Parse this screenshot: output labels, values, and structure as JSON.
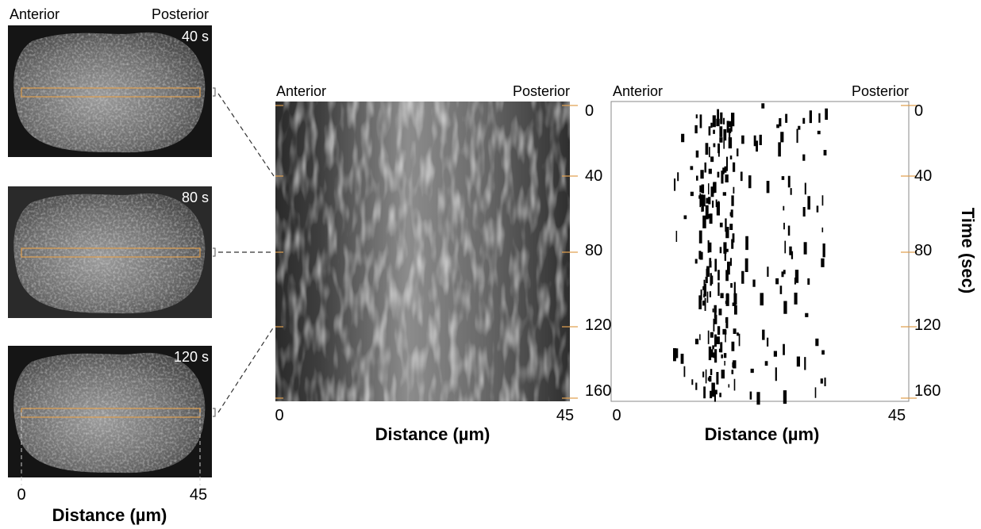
{
  "embryo_panel": {
    "anterior": "Anterior",
    "posterior": "Posterior",
    "frames": [
      "40 s",
      "80 s",
      "120 s"
    ],
    "x_ticks": [
      0,
      45
    ],
    "x_label": "Distance (µm)"
  },
  "kymograph": {
    "anterior": "Anterior",
    "posterior": "Posterior",
    "x_ticks": [
      0,
      45
    ],
    "x_label": "Distance (µm)",
    "y_ticks": [
      0,
      40,
      80,
      120,
      160
    ]
  },
  "binary_kymograph": {
    "anterior": "Anterior",
    "posterior": "Posterior",
    "x_ticks": [
      0,
      45
    ],
    "x_label": "Distance (µm)",
    "y_ticks": [
      0,
      40,
      80,
      120,
      160
    ],
    "y_label": "Time (sec)"
  }
}
